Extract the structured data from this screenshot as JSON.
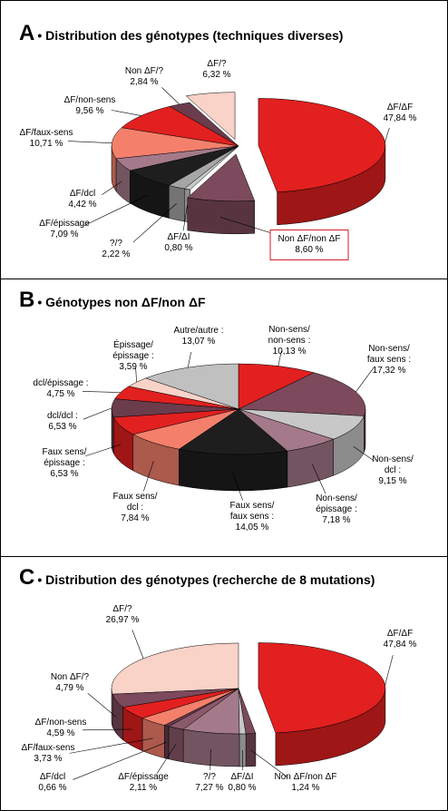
{
  "chart_data": [
    {
      "type": "pie",
      "panel": "A",
      "title": "Distribution des génotypes (techniques diverses)",
      "categories": [
        "ΔF/ΔF",
        "Non ΔF/non ΔF",
        "ΔF/ΔI",
        "?/?",
        "ΔF/épissage",
        "ΔF/dcl",
        "ΔF/faux-sens",
        "ΔF/non-sens",
        "Non ΔF/?",
        "ΔF/?"
      ],
      "values": [
        47.84,
        8.6,
        0.8,
        2.22,
        7.09,
        4.42,
        10.71,
        9.56,
        2.84,
        6.32
      ],
      "value_labels": [
        "47,84 %",
        "8,60 %",
        "0,80 %",
        "2,22 %",
        "7,09 %",
        "4,42 %",
        "10,71 %",
        "9,56 %",
        "2,84 %",
        "6,32 %"
      ],
      "colors": [
        "#e2201f",
        "#7c4a5c",
        "#c8c8c8",
        "#a6a6a6",
        "#1e1e1e",
        "#a47a8a",
        "#f4806c",
        "#e2201f",
        "#6a3c4c",
        "#f9d2c8"
      ]
    },
    {
      "type": "pie",
      "panel": "B",
      "title": "Génotypes non ΔF/non ΔF",
      "categories": [
        "Non-sens/\nnon-sens :",
        "Non-sens/\nfaux sens :",
        "Non-sens/\ndcl :",
        "Non-sens/\népissage :",
        "Faux sens/\nfaux sens :",
        "Faux sens/\ndcl :",
        "Faux sens/\népissage :",
        "dcl/dcl :",
        "dcl/épissage :",
        "Épissage/\népissage :",
        "Autre/autre :"
      ],
      "values": [
        10.13,
        17.32,
        9.15,
        7.18,
        14.05,
        7.84,
        6.53,
        6.53,
        4.75,
        3.59,
        13.07
      ],
      "value_labels": [
        "10,13 %",
        "17,32 %",
        "9,15 %",
        "7,18 %",
        "14,05 %",
        "7,84 %",
        "6,53 %",
        "6,53 %",
        "4,75 %",
        "3,59 %",
        "13,07 %"
      ],
      "colors": [
        "#e2201f",
        "#7c4a5c",
        "#c8c8c8",
        "#a47a8a",
        "#1e1e1e",
        "#f4806c",
        "#e2201f",
        "#6a3c4c",
        "#e2201f",
        "#f9d2c8",
        "#c0c0c0"
      ]
    },
    {
      "type": "pie",
      "panel": "C",
      "title": "Distribution des génotypes (recherche de 8 mutations)",
      "categories": [
        "ΔF/ΔF",
        "Non ΔF/non ΔF",
        "ΔF/ΔI",
        "?/?",
        "ΔF/épissage",
        "ΔF/dcl",
        "ΔF/faux-sens",
        "ΔF/non-sens",
        "Non ΔF/?",
        "ΔF/?"
      ],
      "values": [
        47.84,
        1.24,
        0.8,
        7.27,
        2.11,
        0.66,
        3.73,
        4.59,
        4.79,
        26.97
      ],
      "value_labels": [
        "47,84 %",
        "1,24 %",
        "0,80 %",
        "7,27 %",
        "2,11 %",
        "0,66 %",
        "3,73 %",
        "4,59 %",
        "4,79 %",
        "26,97 %"
      ],
      "colors": [
        "#e2201f",
        "#7c4a5c",
        "#c8c8c8",
        "#a47a8a",
        "#8a5a6a",
        "#6a3c4c",
        "#f4806c",
        "#e2201f",
        "#7c4a5c",
        "#f9d2c8"
      ]
    }
  ]
}
